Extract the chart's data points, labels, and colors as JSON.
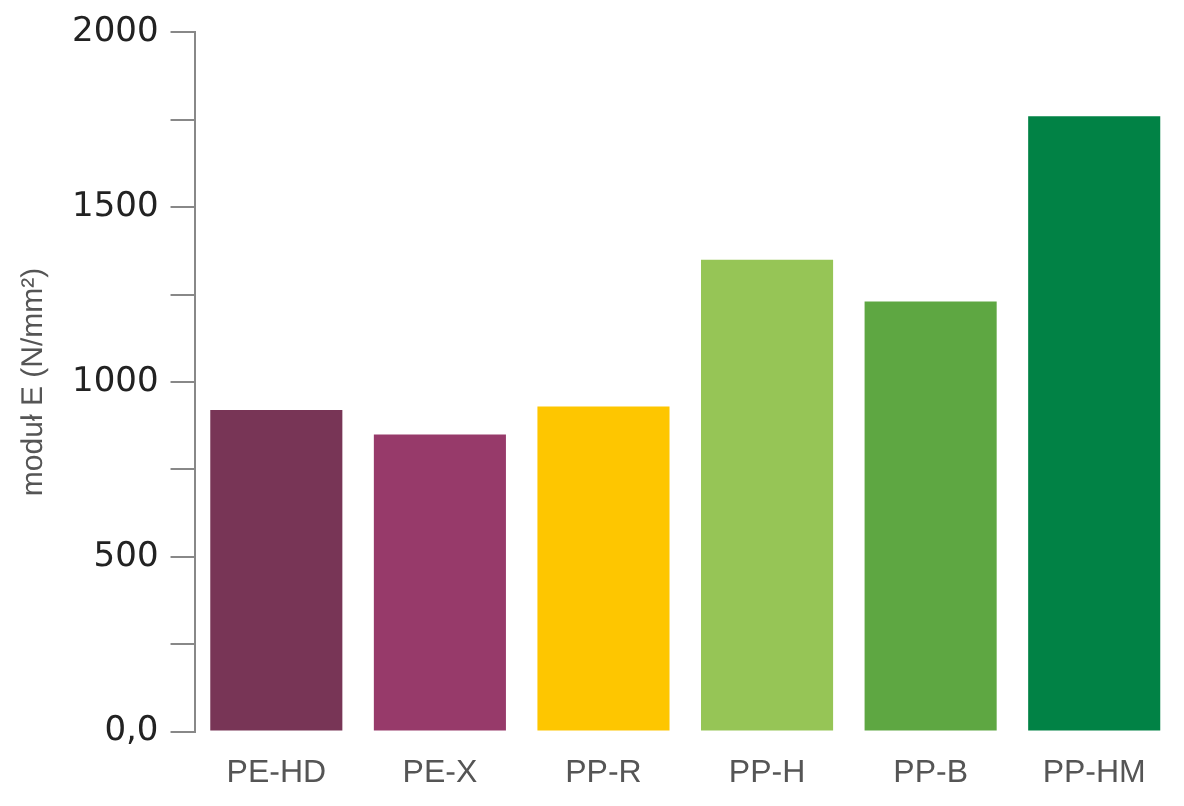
{
  "chart_data": {
    "type": "bar",
    "ylabel": "moduł E (N/mm²)",
    "categories": [
      "PE-HD",
      "PE-X",
      "PP-R",
      "PP-H",
      "PP-B",
      "PP-HM"
    ],
    "values": [
      920,
      850,
      930,
      1350,
      1230,
      1760
    ],
    "colors": [
      "#783556",
      "#973a6a",
      "#fec600",
      "#96c556",
      "#5ea742",
      "#018245"
    ],
    "ylim": [
      0,
      2000
    ],
    "yticks": [
      {
        "value": 0,
        "label": "0,0"
      },
      {
        "value": 250,
        "label": null
      },
      500,
      {
        "value": 750,
        "label": null
      },
      1000,
      {
        "value": 1250,
        "label": null
      },
      1500,
      {
        "value": 1750,
        "label": null
      },
      2000
    ],
    "grid": false
  }
}
